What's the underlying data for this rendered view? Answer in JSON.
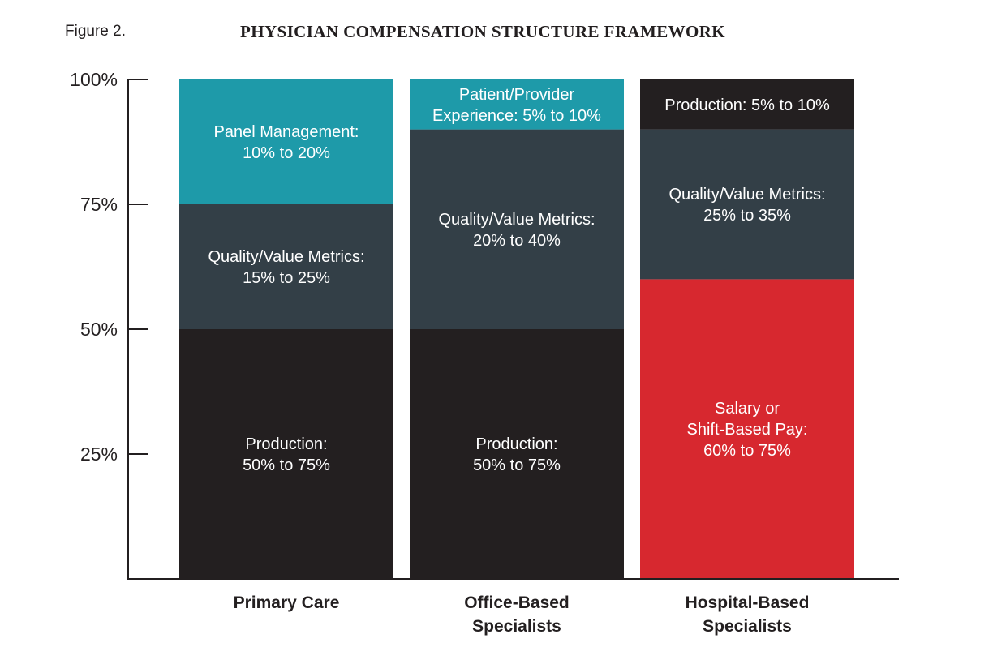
{
  "figure_label": "Figure 2.",
  "chart_data": {
    "type": "bar",
    "stacked": true,
    "title": "PHYSICIAN COMPENSATION STRUCTURE FRAMEWORK",
    "ylim": [
      0,
      100
    ],
    "yticks": [
      {
        "value": 25,
        "label": "25%"
      },
      {
        "value": 50,
        "label": "50%"
      },
      {
        "value": 75,
        "label": "75%"
      },
      {
        "value": 100,
        "label": "100%"
      }
    ],
    "categories": [
      {
        "name": "Primary Care",
        "label_lines": [
          "Primary Care"
        ],
        "segments": [
          {
            "name": "Production",
            "start": 0,
            "end": 50,
            "color": "#231f20",
            "label_lines": [
              "Production:",
              "50% to 75%"
            ]
          },
          {
            "name": "Quality/Value Metrics",
            "start": 50,
            "end": 75,
            "color": "#333f47",
            "label_lines": [
              "Quality/Value Metrics:",
              "15% to 25%"
            ]
          },
          {
            "name": "Panel Management",
            "start": 75,
            "end": 100,
            "color": "#1e9aa9",
            "label_lines": [
              "Panel Management:",
              "10% to 20%"
            ]
          }
        ]
      },
      {
        "name": "Office-Based Specialists",
        "label_lines": [
          "Office-Based",
          "Specialists"
        ],
        "segments": [
          {
            "name": "Production",
            "start": 0,
            "end": 50,
            "color": "#231f20",
            "label_lines": [
              "Production:",
              "50% to 75%"
            ]
          },
          {
            "name": "Quality/Value Metrics",
            "start": 50,
            "end": 90,
            "color": "#333f47",
            "label_lines": [
              "Quality/Value Metrics:",
              "20% to 40%"
            ]
          },
          {
            "name": "Patient/Provider Experience",
            "start": 90,
            "end": 100,
            "color": "#1e9aa9",
            "label_lines": [
              "Patient/Provider",
              "Experience: 5% to 10%"
            ]
          }
        ]
      },
      {
        "name": "Hospital-Based Specialists",
        "label_lines": [
          "Hospital-Based",
          "Specialists"
        ],
        "segments": [
          {
            "name": "Salary or Shift-Based Pay",
            "start": 0,
            "end": 60,
            "color": "#d7282f",
            "label_lines": [
              "Salary or",
              "Shift-Based Pay:",
              "60% to 75%"
            ]
          },
          {
            "name": "Quality/Value Metrics",
            "start": 60,
            "end": 90,
            "color": "#333f47",
            "label_lines": [
              "Quality/Value Metrics:",
              "25% to 35%"
            ]
          },
          {
            "name": "Production",
            "start": 90,
            "end": 100,
            "color": "#231f20",
            "label_lines": [
              "Production: 5% to 10%"
            ]
          }
        ]
      }
    ]
  }
}
